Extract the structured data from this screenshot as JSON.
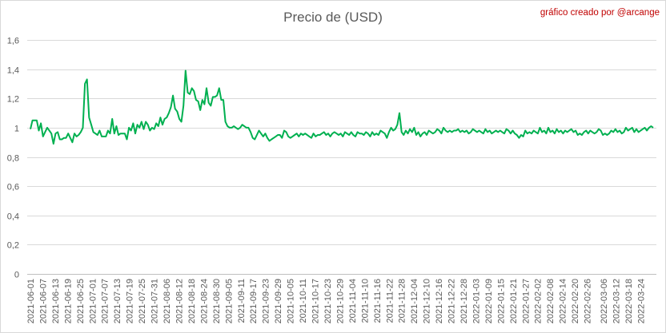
{
  "chart_data": {
    "type": "line",
    "title": "Precio de (USD)",
    "credit": "gráfico creado por @arcange",
    "xlabel": "",
    "ylabel": "",
    "ylim": [
      0,
      1.6
    ],
    "y_ticks": [
      "0",
      "0,2",
      "0,4",
      "0,6",
      "0,8",
      "1",
      "1,2",
      "1,4",
      "1,6"
    ],
    "y_tick_values": [
      0,
      0.2,
      0.4,
      0.6,
      0.8,
      1.0,
      1.2,
      1.4,
      1.6
    ],
    "grid": "horizontal",
    "legend": "none",
    "line_color": "#00b050",
    "x_start": "2021-06-01",
    "x_end": "2022-03-30",
    "x_tick_labels": [
      "2021-06-01",
      "2021-06-07",
      "2021-06-13",
      "2021-06-19",
      "2021-06-25",
      "2021-07-01",
      "2021-07-07",
      "2021-07-13",
      "2021-07-19",
      "2021-07-25",
      "2021-07-31",
      "2021-08-06",
      "2021-08-12",
      "2021-08-18",
      "2021-08-24",
      "2021-08-30",
      "2021-09-05",
      "2021-09-11",
      "2021-09-17",
      "2021-09-23",
      "2021-09-29",
      "2021-10-05",
      "2021-10-11",
      "2021-10-17",
      "2021-10-23",
      "2021-10-29",
      "2021-11-04",
      "2021-11-10",
      "2021-11-16",
      "2021-11-22",
      "2021-11-28",
      "2021-12-04",
      "2021-12-10",
      "2021-12-16",
      "2021-12-22",
      "2021-12-28",
      "2022-01-03",
      "2022-01-09",
      "2022-01-15",
      "2022-01-21",
      "2022-01-27",
      "2022-02-02",
      "2022-02-08",
      "2022-02-14",
      "2022-02-20",
      "2022-02-26",
      "2022-03-06",
      "2022-03-12",
      "2022-03-18",
      "2022-03-24"
    ],
    "series": [
      {
        "values": [
          0.99,
          1.05,
          1.05,
          1.05,
          0.98,
          1.03,
          0.94,
          0.97,
          1.0,
          0.98,
          0.96,
          0.89,
          0.96,
          0.97,
          0.92,
          0.92,
          0.93,
          0.93,
          0.96,
          0.93,
          0.9,
          0.96,
          0.94,
          0.95,
          0.97,
          1.0,
          1.3,
          1.33,
          1.07,
          1.02,
          0.97,
          0.96,
          0.95,
          0.98,
          0.94,
          0.94,
          0.94,
          0.98,
          0.96,
          1.06,
          0.96,
          1.01,
          0.95,
          0.96,
          0.96,
          0.96,
          0.92,
          1.0,
          0.98,
          1.03,
          0.96,
          1.02,
          1.0,
          1.04,
          0.99,
          1.04,
          1.02,
          0.98,
          1.0,
          0.99,
          1.03,
          1.01,
          1.07,
          1.02,
          1.06,
          1.07,
          1.1,
          1.14,
          1.22,
          1.13,
          1.11,
          1.06,
          1.04,
          1.15,
          1.39,
          1.24,
          1.23,
          1.27,
          1.25,
          1.19,
          1.18,
          1.12,
          1.19,
          1.16,
          1.27,
          1.17,
          1.15,
          1.21,
          1.21,
          1.22,
          1.27,
          1.19,
          1.19,
          1.04,
          1.01,
          1.0,
          1.0,
          1.01,
          1.0,
          0.99,
          1.0,
          1.02,
          1.01,
          1.0,
          1.0,
          0.97,
          0.93,
          0.92,
          0.95,
          0.98,
          0.96,
          0.94,
          0.96,
          0.93,
          0.91,
          0.92,
          0.93,
          0.94,
          0.95,
          0.95,
          0.93,
          0.98,
          0.97,
          0.94,
          0.93,
          0.94,
          0.95,
          0.96,
          0.94,
          0.96,
          0.95,
          0.96,
          0.95,
          0.94,
          0.93,
          0.96,
          0.94,
          0.95,
          0.95,
          0.96,
          0.97,
          0.95,
          0.96,
          0.94,
          0.96,
          0.97,
          0.96,
          0.95,
          0.96,
          0.94,
          0.97,
          0.96,
          0.95,
          0.97,
          0.95,
          0.94,
          0.97,
          0.96,
          0.96,
          0.95,
          0.97,
          0.96,
          0.94,
          0.97,
          0.95,
          0.96,
          0.95,
          0.98,
          0.97,
          0.96,
          0.93,
          0.97,
          1.0,
          0.98,
          0.99,
          1.02,
          1.1,
          0.97,
          0.95,
          0.98,
          0.96,
          0.99,
          0.97,
          1.0,
          0.95,
          0.97,
          0.94,
          0.96,
          0.97,
          0.95,
          0.98,
          0.97,
          0.96,
          0.97,
          0.99,
          0.98,
          0.96,
          1.0,
          0.98,
          0.97,
          0.98,
          0.97,
          0.98,
          0.98,
          0.99,
          0.97,
          0.98,
          0.97,
          0.98,
          0.96,
          0.97,
          0.99,
          0.98,
          0.97,
          0.98,
          0.97,
          0.96,
          0.99,
          0.97,
          0.98,
          0.96,
          0.97,
          0.98,
          0.97,
          0.98,
          0.97,
          0.96,
          0.99,
          0.98,
          0.96,
          0.98,
          0.96,
          0.95,
          0.93,
          0.95,
          0.94,
          0.98,
          0.96,
          0.97,
          0.96,
          0.98,
          0.97,
          0.96,
          1.0,
          0.97,
          0.98,
          0.96,
          1.0,
          0.97,
          0.98,
          0.96,
          0.99,
          0.97,
          0.98,
          0.96,
          0.98,
          0.97,
          0.98,
          0.99,
          0.97,
          0.98,
          0.95,
          0.96,
          0.95,
          0.97,
          0.98,
          0.96,
          0.98,
          0.97,
          0.96,
          0.97,
          0.99,
          0.98,
          0.95,
          0.96,
          0.95,
          0.96,
          0.98,
          0.97,
          0.99,
          0.97,
          0.98,
          0.96,
          0.97,
          1.0,
          0.98,
          0.99,
          1.0,
          0.97,
          0.99,
          0.97,
          0.98,
          0.99,
          1.0,
          0.98,
          1.0,
          1.01,
          1.0
        ]
      }
    ]
  }
}
